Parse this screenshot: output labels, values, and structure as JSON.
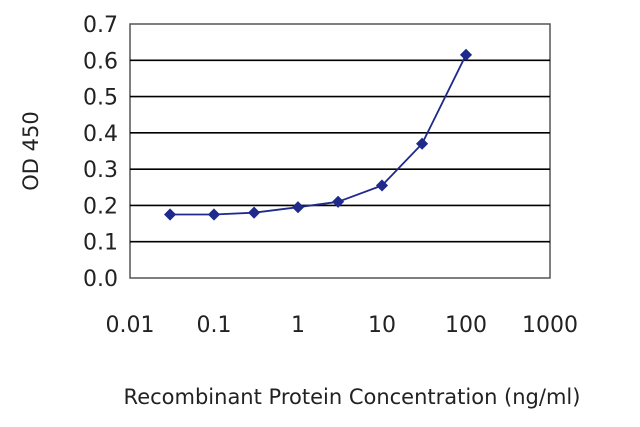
{
  "chart_data": {
    "type": "line",
    "xlabel": "Recombinant Protein Concentration (ng/ml)",
    "ylabel": "OD 450",
    "x_scale": "log",
    "xlim": [
      0.01,
      1000
    ],
    "ylim": [
      0.0,
      0.7
    ],
    "x_tick_labels": [
      "0.01",
      "0.1",
      "1",
      "10",
      "100",
      "1000"
    ],
    "x_tick_values": [
      0.01,
      0.1,
      1,
      10,
      100,
      1000
    ],
    "y_tick_labels": [
      "0.0",
      "0.1",
      "0.2",
      "0.3",
      "0.4",
      "0.5",
      "0.6",
      "0.7"
    ],
    "y_tick_values": [
      0.0,
      0.1,
      0.2,
      0.3,
      0.4,
      0.5,
      0.6,
      0.7
    ],
    "grid": "horizontal",
    "legend": "none",
    "series": [
      {
        "x": [
          0.03,
          0.1,
          0.3,
          1,
          3,
          10,
          30,
          100
        ],
        "y": [
          0.175,
          0.175,
          0.18,
          0.195,
          0.21,
          0.255,
          0.37,
          0.615
        ]
      }
    ],
    "colors": {
      "series": "#1f2a8c",
      "grid": "#000000",
      "axis": "#555555"
    }
  }
}
